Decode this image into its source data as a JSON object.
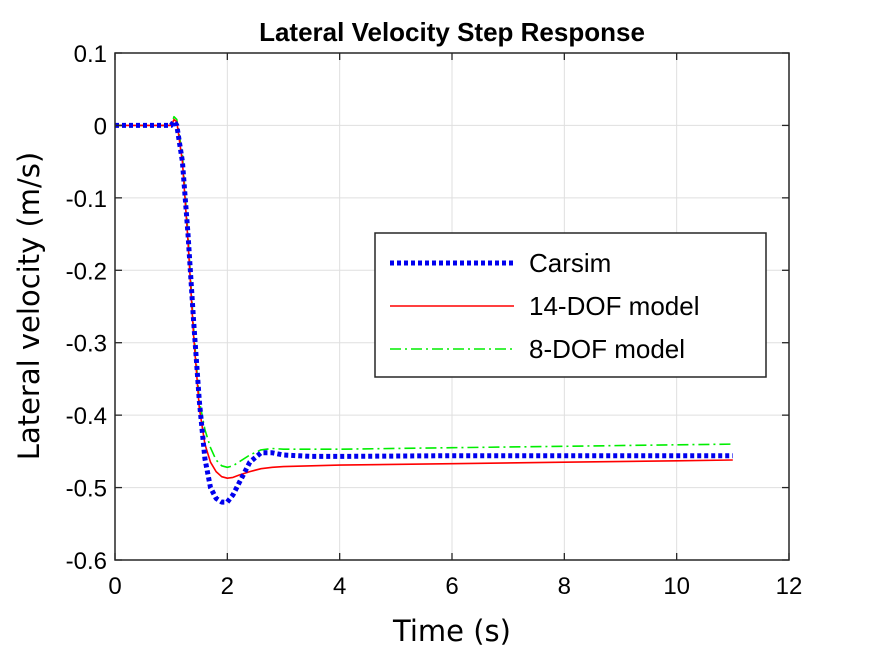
{
  "chart_data": {
    "type": "line",
    "title": "Lateral Velocity Step Response",
    "xlabel": "Time (s)",
    "ylabel": "Lateral velocity (m/s)",
    "xlim": [
      0,
      12
    ],
    "ylim": [
      -0.6,
      0.1
    ],
    "xticks": [
      0,
      2,
      4,
      6,
      8,
      10,
      12
    ],
    "yticks": [
      -0.6,
      -0.5,
      -0.4,
      -0.3,
      -0.2,
      -0.1,
      0,
      0.1
    ],
    "xtick_labels": [
      "0",
      "2",
      "4",
      "6",
      "8",
      "10",
      "12"
    ],
    "ytick_labels": [
      "-0.6",
      "-0.5",
      "-0.4",
      "-0.3",
      "-0.2",
      "-0.1",
      "0",
      "0.1"
    ],
    "grid": true,
    "legend_position": "center-right",
    "series": [
      {
        "name": "Carsim",
        "color": "#0000ee",
        "style": "dotted",
        "x": [
          0,
          1.0,
          1.05,
          1.1,
          1.2,
          1.3,
          1.4,
          1.5,
          1.6,
          1.7,
          1.8,
          1.9,
          2.0,
          2.1,
          2.2,
          2.3,
          2.4,
          2.6,
          2.8,
          3.0,
          3.5,
          4,
          6,
          8,
          10,
          11
        ],
        "y": [
          0,
          0,
          0.006,
          0.0,
          -0.05,
          -0.15,
          -0.27,
          -0.38,
          -0.46,
          -0.5,
          -0.515,
          -0.52,
          -0.52,
          -0.51,
          -0.495,
          -0.48,
          -0.465,
          -0.452,
          -0.452,
          -0.455,
          -0.457,
          -0.457,
          -0.456,
          -0.456,
          -0.456,
          -0.456
        ]
      },
      {
        "name": "14-DOF model",
        "color": "#ff0000",
        "style": "solid",
        "x": [
          0,
          1.0,
          1.05,
          1.1,
          1.2,
          1.3,
          1.4,
          1.5,
          1.6,
          1.7,
          1.8,
          1.9,
          2.0,
          2.1,
          2.2,
          2.4,
          2.6,
          2.8,
          3.0,
          3.5,
          4,
          6,
          8,
          10,
          11
        ],
        "y": [
          0,
          0,
          0.008,
          0.005,
          -0.05,
          -0.16,
          -0.29,
          -0.39,
          -0.44,
          -0.465,
          -0.478,
          -0.485,
          -0.487,
          -0.486,
          -0.483,
          -0.478,
          -0.474,
          -0.472,
          -0.471,
          -0.47,
          -0.469,
          -0.467,
          -0.465,
          -0.463,
          -0.462
        ]
      },
      {
        "name": "8-DOF model",
        "color": "#00ee00",
        "style": "dashdot",
        "x": [
          0,
          1.0,
          1.05,
          1.1,
          1.2,
          1.3,
          1.4,
          1.5,
          1.6,
          1.7,
          1.8,
          1.9,
          2.0,
          2.1,
          2.2,
          2.4,
          2.6,
          2.8,
          3.0,
          3.5,
          4,
          6,
          8,
          10,
          11
        ],
        "y": [
          0,
          0,
          0.012,
          0.008,
          -0.04,
          -0.15,
          -0.28,
          -0.38,
          -0.42,
          -0.445,
          -0.462,
          -0.47,
          -0.472,
          -0.47,
          -0.465,
          -0.455,
          -0.448,
          -0.446,
          -0.447,
          -0.447,
          -0.447,
          -0.445,
          -0.443,
          -0.441,
          -0.44
        ]
      }
    ]
  }
}
